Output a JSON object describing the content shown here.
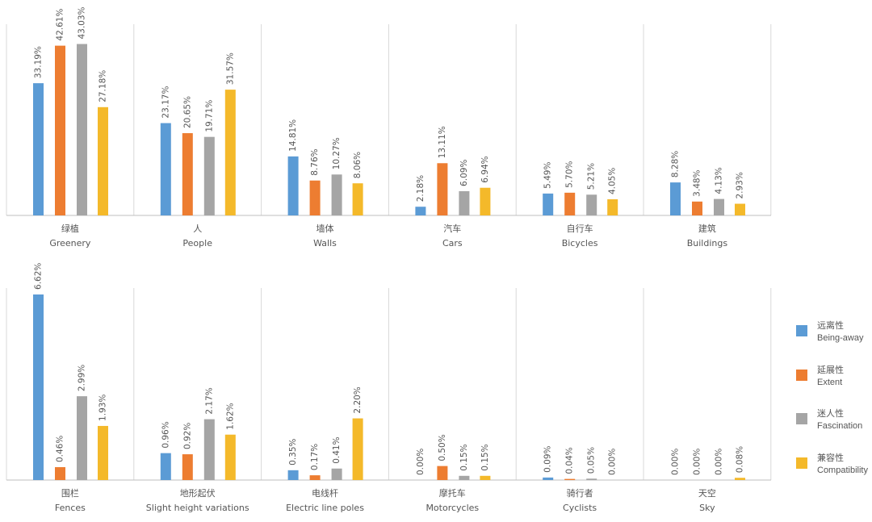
{
  "chart_data": {
    "type": "bar",
    "series": [
      {
        "zh": "远离性",
        "name": "Being-away",
        "color": "#5b9bd5"
      },
      {
        "zh": "延展性",
        "name": "Extent",
        "color": "#ed7d31"
      },
      {
        "zh": "迷人性",
        "name": "Fascination",
        "color": "#a5a5a5"
      },
      {
        "zh": "兼容性",
        "name": "Compatibility",
        "color": "#f4b92a"
      }
    ],
    "panels": [
      {
        "zh": "绿植",
        "en": "Greenery",
        "values": [
          33.19,
          42.61,
          43.03,
          27.18
        ],
        "labels": [
          "33.19%",
          "42.61%",
          "43.03%",
          "27.18%"
        ]
      },
      {
        "zh": "人",
        "en": "People",
        "values": [
          23.17,
          20.65,
          19.71,
          31.57
        ],
        "labels": [
          "23.17%",
          "20.65%",
          "19.71%",
          "31.57%"
        ]
      },
      {
        "zh": "墙体",
        "en": "Walls",
        "values": [
          14.81,
          8.76,
          10.27,
          8.06
        ],
        "labels": [
          "14.81%",
          "8.76%",
          "10.27%",
          "8.06%"
        ]
      },
      {
        "zh": "汽车",
        "en": "Cars",
        "values": [
          2.18,
          13.11,
          6.09,
          6.94
        ],
        "labels": [
          "2.18%",
          "13.11%",
          "6.09%",
          "6.94%"
        ]
      },
      {
        "zh": "自行车",
        "en": "Bicycles",
        "values": [
          5.49,
          5.7,
          5.21,
          4.05
        ],
        "labels": [
          "5.49%",
          "5.70%",
          "5.21%",
          "4.05%"
        ]
      },
      {
        "zh": "建筑",
        "en": "Buildings",
        "values": [
          8.28,
          3.48,
          4.13,
          2.93
        ],
        "labels": [
          "8.28%",
          "3.48%",
          "4.13%",
          "2.93%"
        ]
      },
      {
        "zh": "围栏",
        "en": "Fences",
        "values": [
          6.62,
          0.46,
          2.99,
          1.93
        ],
        "labels": [
          "6.62%",
          "0.46%",
          "2.99%",
          "1.93%"
        ]
      },
      {
        "zh": "地形起伏",
        "en": "Slight height variations",
        "values": [
          0.96,
          0.92,
          2.17,
          1.62
        ],
        "labels": [
          "0.96%",
          "0.92%",
          "2.17%",
          "1.62%"
        ]
      },
      {
        "zh": "电线杆",
        "en": "Electric line poles",
        "values": [
          0.35,
          0.17,
          0.41,
          2.2
        ],
        "labels": [
          "0.35%",
          "0.17%",
          "0.41%",
          "2.20%"
        ]
      },
      {
        "zh": "摩托车",
        "en": "Motorcycles",
        "values": [
          0.0,
          0.5,
          0.15,
          0.15
        ],
        "labels": [
          "0.00%",
          "0.50%",
          "0.15%",
          "0.15%"
        ]
      },
      {
        "zh": "骑行者",
        "en": "Cyclists",
        "values": [
          0.09,
          0.04,
          0.05,
          0.0
        ],
        "labels": [
          "0.09%",
          "0.04%",
          "0.05%",
          "0.00%"
        ]
      },
      {
        "zh": "天空",
        "en": "Sky",
        "values": [
          0.0,
          0.0,
          0.0,
          0.08
        ],
        "labels": [
          "0.00%",
          "0.00%",
          "0.00%",
          "0.08%"
        ]
      }
    ],
    "rows": [
      {
        "panels": [
          0,
          1,
          2,
          3,
          4,
          5
        ],
        "ylim": [
          0,
          48
        ]
      },
      {
        "panels": [
          6,
          7,
          8,
          9,
          10,
          11
        ],
        "ylim": [
          0,
          6.85
        ]
      }
    ],
    "legend_position": "right"
  }
}
